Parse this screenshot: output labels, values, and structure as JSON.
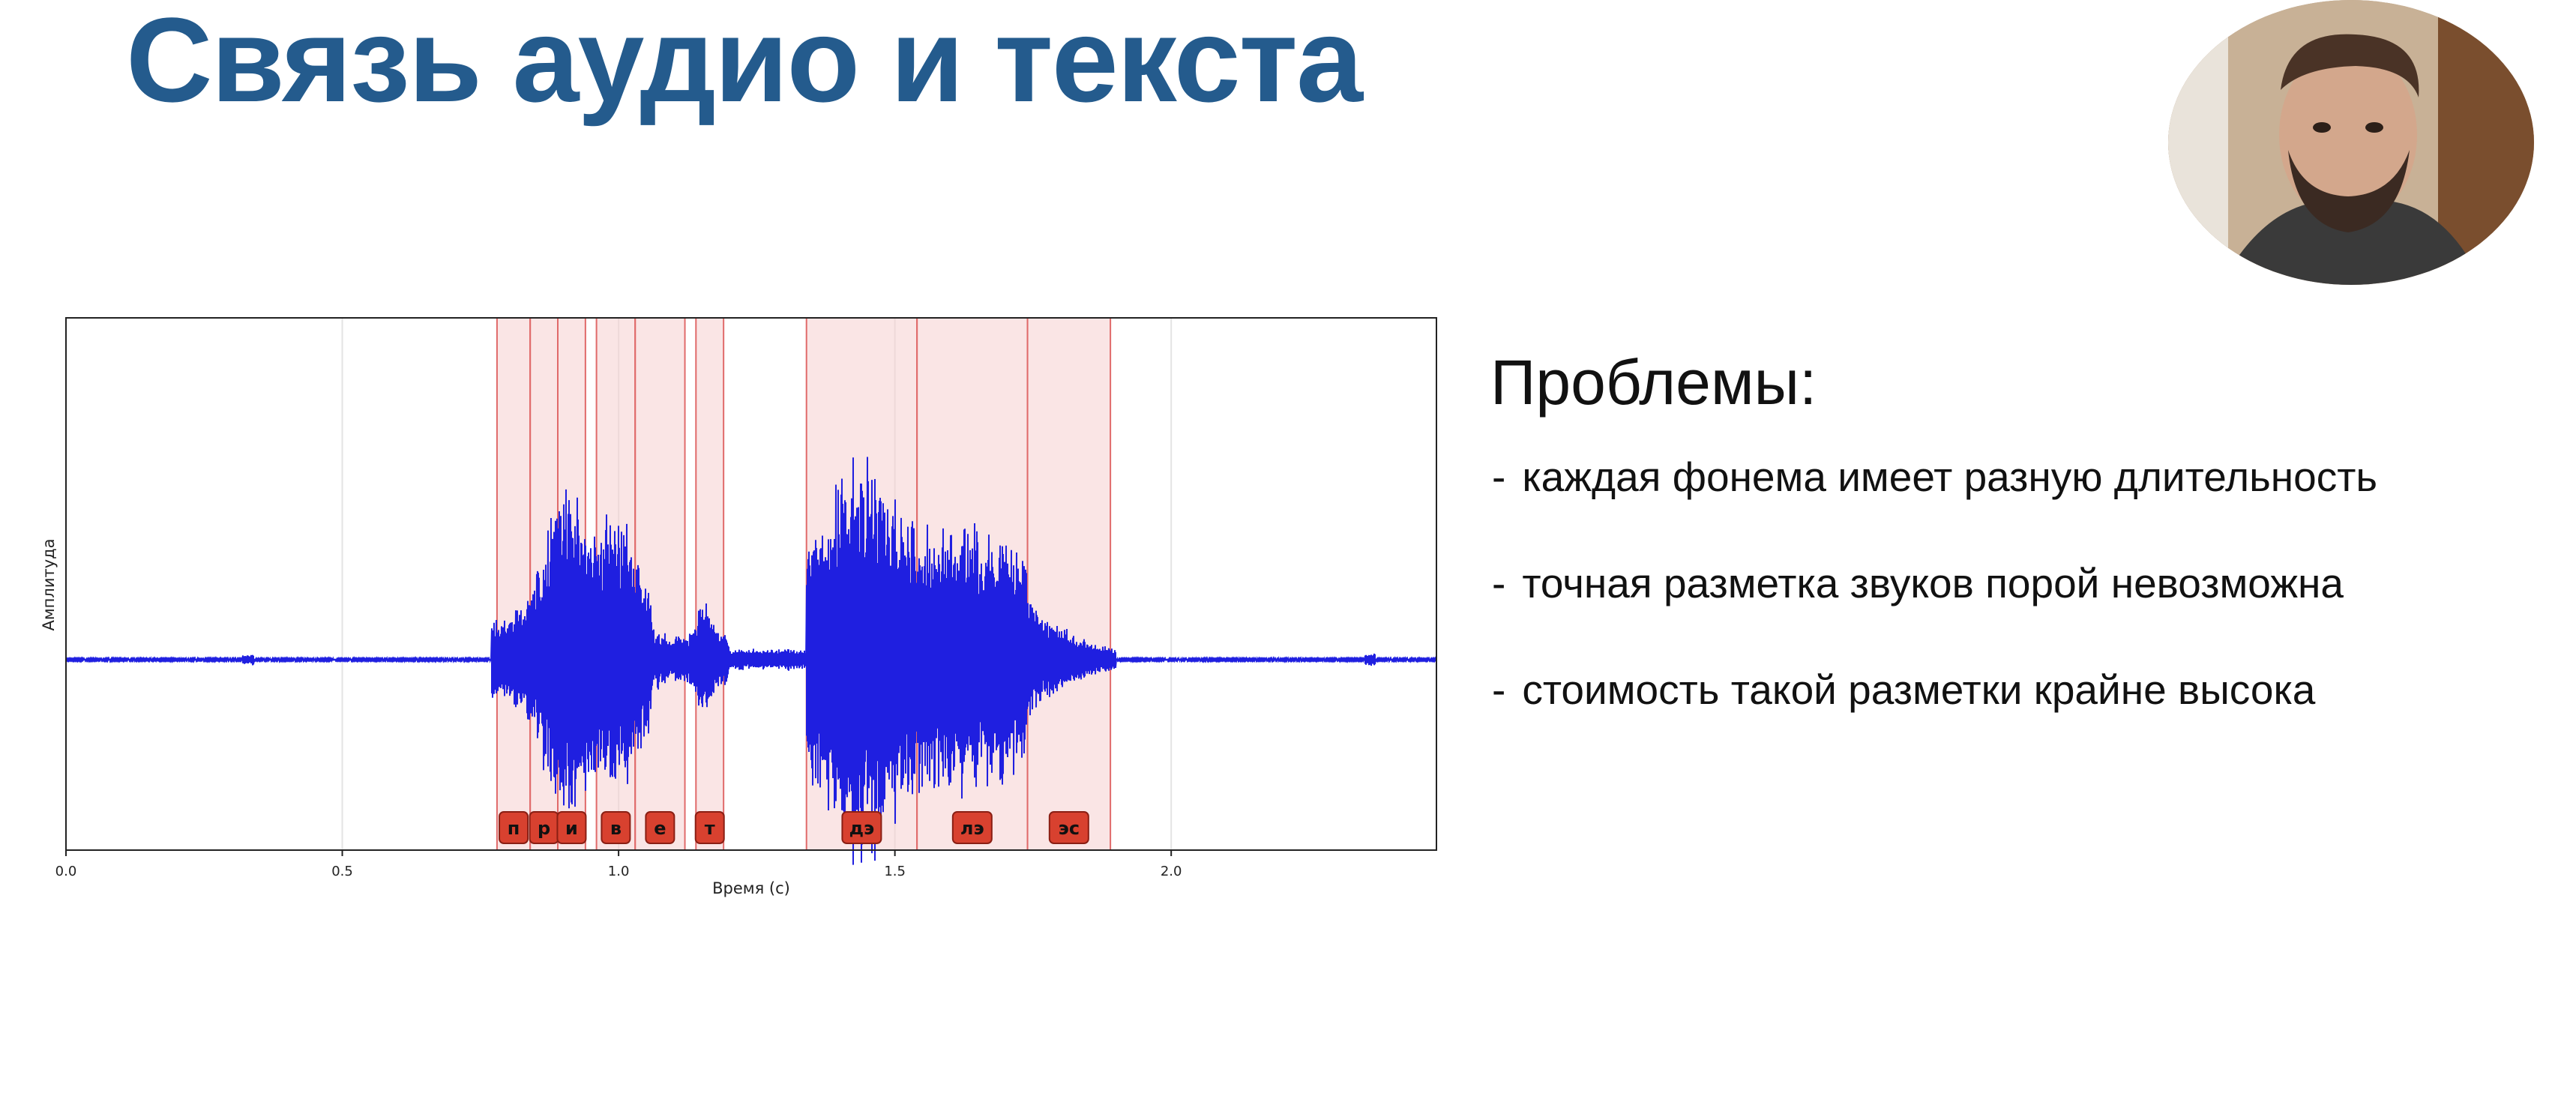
{
  "slide": {
    "title": "Связь аудио и текста",
    "problems_title": "Проблемы:",
    "problems": [
      "каждая фонема имеет разную длительность",
      "точная разметка звуков порой невозможна",
      "стоимость такой разметки крайне высока"
    ],
    "bullet_marker": "-"
  },
  "colors": {
    "title": "#245b8d",
    "waveform": "#1f1fe0",
    "segment_fill": "#f6cfcf",
    "segment_border": "#e06a6a",
    "phoneme_label_bg": "#d8412f"
  },
  "chart_data": {
    "type": "line",
    "xlabel": "Время (с)",
    "ylabel": "Амплитуда",
    "xlim": [
      0.0,
      2.48
    ],
    "x_ticks": [
      "0.0",
      "0.5",
      "1.0",
      "1.5",
      "2.0"
    ],
    "x_tick_values": [
      0.0,
      0.5,
      1.0,
      1.5,
      2.0
    ],
    "grid": true,
    "segments": [
      {
        "label": "п",
        "start": 0.78,
        "end": 0.84
      },
      {
        "label": "р",
        "start": 0.84,
        "end": 0.89
      },
      {
        "label": "и",
        "start": 0.89,
        "end": 0.94
      },
      {
        "label": "в",
        "start": 0.96,
        "end": 1.03
      },
      {
        "label": "е",
        "start": 1.03,
        "end": 1.12
      },
      {
        "label": "т",
        "start": 1.14,
        "end": 1.19
      },
      {
        "label": "дэ",
        "start": 1.34,
        "end": 1.54
      },
      {
        "label": "лэ",
        "start": 1.54,
        "end": 1.74
      },
      {
        "label": "эс",
        "start": 1.74,
        "end": 1.89
      }
    ]
  }
}
